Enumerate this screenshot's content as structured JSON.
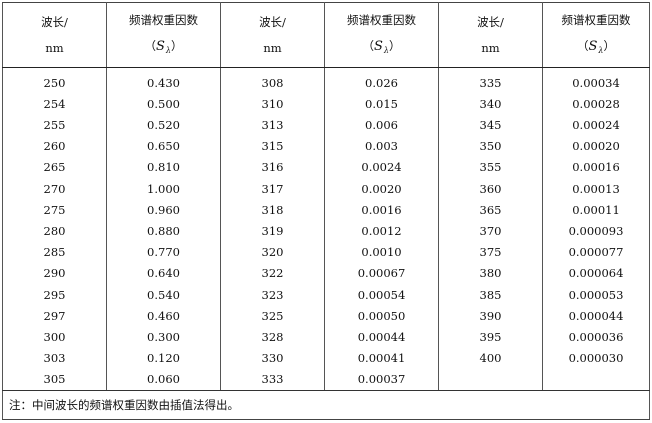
{
  "headers": {
    "wavelength_line1": "波长/",
    "wavelength_line2": "nm",
    "weight_line1": "频谱权重因数",
    "weight_open": "（",
    "weight_symbol": "S",
    "weight_subscript": "λ",
    "weight_close": "）"
  },
  "rows": [
    [
      "250",
      "0.430",
      "308",
      "0.026",
      "335",
      "0.00034"
    ],
    [
      "254",
      "0.500",
      "310",
      "0.015",
      "340",
      "0.00028"
    ],
    [
      "255",
      "0.520",
      "313",
      "0.006",
      "345",
      "0.00024"
    ],
    [
      "260",
      "0.650",
      "315",
      "0.003",
      "350",
      "0.00020"
    ],
    [
      "265",
      "0.810",
      "316",
      "0.0024",
      "355",
      "0.00016"
    ],
    [
      "270",
      "1.000",
      "317",
      "0.0020",
      "360",
      "0.00013"
    ],
    [
      "275",
      "0.960",
      "318",
      "0.0016",
      "365",
      "0.00011"
    ],
    [
      "280",
      "0.880",
      "319",
      "0.0012",
      "370",
      "0.000093"
    ],
    [
      "285",
      "0.770",
      "320",
      "0.0010",
      "375",
      "0.000077"
    ],
    [
      "290",
      "0.640",
      "322",
      "0.00067",
      "380",
      "0.000064"
    ],
    [
      "295",
      "0.540",
      "323",
      "0.00054",
      "385",
      "0.000053"
    ],
    [
      "297",
      "0.460",
      "325",
      "0.00050",
      "390",
      "0.000044"
    ],
    [
      "300",
      "0.300",
      "328",
      "0.00044",
      "395",
      "0.000036"
    ],
    [
      "303",
      "0.120",
      "330",
      "0.00041",
      "400",
      "0.000030"
    ],
    [
      "305",
      "0.060",
      "333",
      "0.00037",
      "",
      ""
    ]
  ],
  "note": "注：中间波长的频谱权重因数由插值法得出。"
}
